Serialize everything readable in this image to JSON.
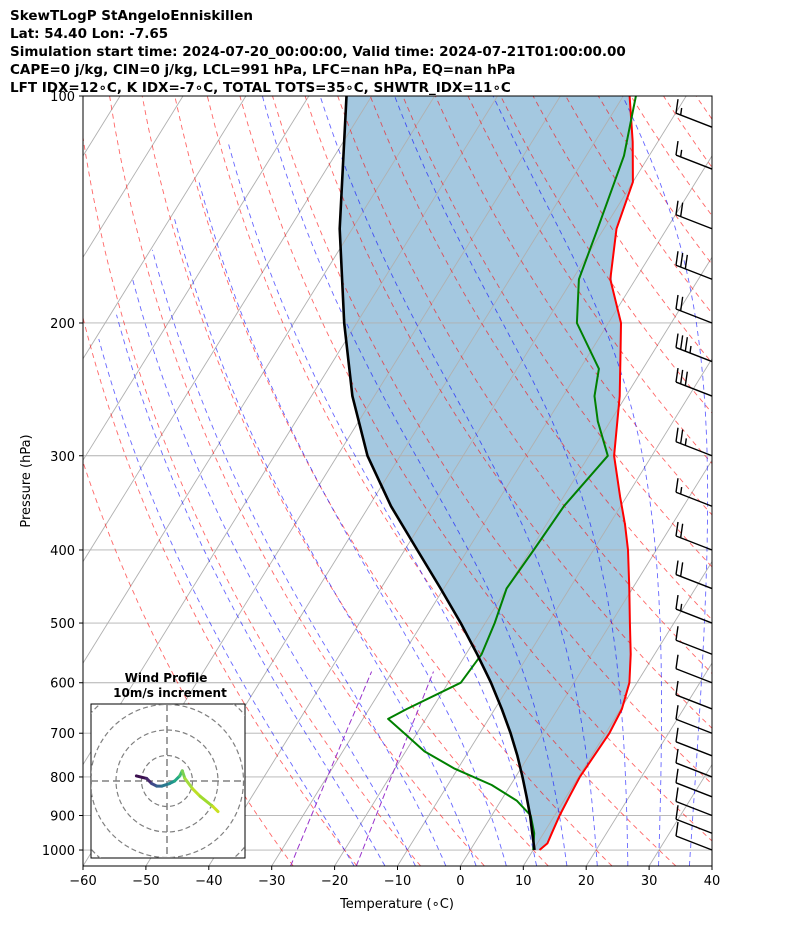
{
  "title_lines": [
    "SkewTLogP StAngeloEnniskillen",
    "Lat: 54.40   Lon: -7.65",
    "Simulation start time: 2024-07-20_00:00:00, Valid time: 2024-07-21T01:00:00.00",
    "CAPE=0 j/kg, CIN=0 j/kg, LCL=991 hPa, LFC=nan hPa, EQ=nan hPa",
    "LFT IDX=12∘C, K IDX=-7∘C, TOTAL TOTS=35∘C, SHWTR_IDX=11∘C"
  ],
  "chart_data": {
    "type": "skewt",
    "xlabel": "Temperature (∘C)",
    "ylabel": "Pressure (hPa)",
    "xlim": [
      -60,
      40
    ],
    "ylim": [
      1050,
      100
    ],
    "yscale": "log",
    "x_ticks": [
      "−60",
      "−50",
      "−40",
      "−30",
      "−20",
      "−10",
      "0",
      "10",
      "20",
      "30",
      "40"
    ],
    "x_tick_values": [
      -60,
      -50,
      -40,
      -30,
      -20,
      -10,
      0,
      10,
      20,
      30,
      40
    ],
    "y_ticks": [
      "1000",
      "900",
      "800",
      "700",
      "600",
      "500",
      "400",
      "300",
      "200",
      "100"
    ],
    "y_tick_values": [
      1000,
      900,
      800,
      700,
      600,
      500,
      400,
      300,
      200,
      100
    ],
    "grid": true,
    "series": [
      {
        "role": "temperature",
        "color": "#ff0000",
        "points": [
          [
            1000,
            11
          ],
          [
            980,
            11.6
          ],
          [
            950,
            11.3
          ],
          [
            900,
            10.8
          ],
          [
            850,
            10.5
          ],
          [
            800,
            10.2
          ],
          [
            750,
            10.4
          ],
          [
            700,
            10.6
          ],
          [
            650,
            10.2
          ],
          [
            600,
            8.8
          ],
          [
            550,
            6.2
          ],
          [
            500,
            3
          ],
          [
            450,
            -0.5
          ],
          [
            400,
            -4.5
          ],
          [
            370,
            -7.5
          ],
          [
            340,
            -11
          ],
          [
            300,
            -16
          ],
          [
            250,
            -21
          ],
          [
            220,
            -25
          ],
          [
            200,
            -28
          ],
          [
            175,
            -34
          ],
          [
            150,
            -38
          ],
          [
            130,
            -40
          ],
          [
            115,
            -44
          ],
          [
            100,
            -49
          ]
        ]
      },
      {
        "role": "dewpoint",
        "color": "#008000",
        "points": [
          [
            1000,
            10
          ],
          [
            950,
            8.5
          ],
          [
            900,
            6.2
          ],
          [
            860,
            2.5
          ],
          [
            820,
            -3
          ],
          [
            780,
            -10.5
          ],
          [
            740,
            -17
          ],
          [
            700,
            -22
          ],
          [
            670,
            -26
          ],
          [
            650,
            -24
          ],
          [
            600,
            -18
          ],
          [
            550,
            -17.5
          ],
          [
            500,
            -18.5
          ],
          [
            450,
            -20
          ],
          [
            400,
            -19.5
          ],
          [
            350,
            -19
          ],
          [
            300,
            -17
          ],
          [
            270,
            -22
          ],
          [
            250,
            -25
          ],
          [
            230,
            -27
          ],
          [
            200,
            -35
          ],
          [
            175,
            -39
          ],
          [
            150,
            -41
          ],
          [
            120,
            -44
          ],
          [
            100,
            -48
          ]
        ]
      },
      {
        "role": "parcel",
        "color": "#000000",
        "points": [
          [
            1000,
            10.2
          ],
          [
            950,
            8.2
          ],
          [
            900,
            6.1
          ],
          [
            850,
            3.7
          ],
          [
            800,
            1.1
          ],
          [
            750,
            -1.8
          ],
          [
            700,
            -5.1
          ],
          [
            650,
            -8.9
          ],
          [
            600,
            -13.2
          ],
          [
            550,
            -18.2
          ],
          [
            500,
            -23.9
          ],
          [
            450,
            -30.5
          ],
          [
            400,
            -38
          ],
          [
            350,
            -46.5
          ],
          [
            300,
            -55.2
          ],
          [
            250,
            -63.5
          ],
          [
            200,
            -72
          ],
          [
            150,
            -82
          ],
          [
            100,
            -94
          ]
        ]
      }
    ],
    "wind_barbs": [
      {
        "p": 1000,
        "speed_kt": 10
      },
      {
        "p": 950,
        "speed_kt": 10
      },
      {
        "p": 900,
        "speed_kt": 10
      },
      {
        "p": 850,
        "speed_kt": 10
      },
      {
        "p": 800,
        "speed_kt": 10
      },
      {
        "p": 750,
        "speed_kt": 10
      },
      {
        "p": 700,
        "speed_kt": 10
      },
      {
        "p": 650,
        "speed_kt": 10
      },
      {
        "p": 600,
        "speed_kt": 10
      },
      {
        "p": 550,
        "speed_kt": 10
      },
      {
        "p": 500,
        "speed_kt": 15
      },
      {
        "p": 450,
        "speed_kt": 20
      },
      {
        "p": 400,
        "speed_kt": 20
      },
      {
        "p": 350,
        "speed_kt": 15
      },
      {
        "p": 300,
        "speed_kt": 25
      },
      {
        "p": 250,
        "speed_kt": 30
      },
      {
        "p": 225,
        "speed_kt": 35
      },
      {
        "p": 200,
        "speed_kt": 20
      },
      {
        "p": 175,
        "speed_kt": 30
      },
      {
        "p": 150,
        "speed_kt": 20
      },
      {
        "p": 125,
        "speed_kt": 15
      },
      {
        "p": 110,
        "speed_kt": 15
      }
    ],
    "hodograph": {
      "title": "Wind Profile",
      "subtitle": "10m/s increment",
      "ring_increment_ms": 10,
      "points_uv": [
        [
          -12,
          2
        ],
        [
          -8,
          1
        ],
        [
          -6,
          -1
        ],
        [
          -4,
          -2
        ],
        [
          -2,
          -2
        ],
        [
          1,
          -1
        ],
        [
          3,
          0
        ],
        [
          5,
          2
        ],
        [
          6,
          4
        ],
        [
          7,
          1
        ],
        [
          10,
          -3
        ],
        [
          13,
          -6
        ],
        [
          18,
          -10
        ],
        [
          20,
          -12
        ]
      ]
    }
  }
}
